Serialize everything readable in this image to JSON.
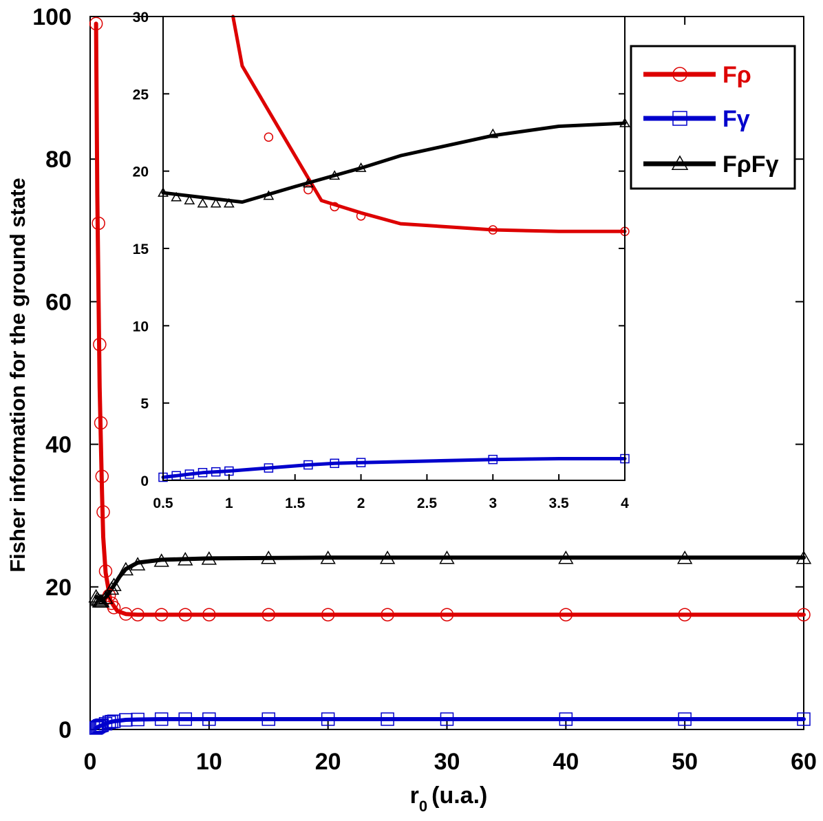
{
  "chart_data": {
    "type": "line",
    "title": "",
    "ylabel": "Fisher information for the ground state",
    "xlabel_main": "r",
    "xlabel_sub": "0",
    "xlabel_unit": "(u.a.)",
    "xlim": [
      0,
      60
    ],
    "ylim": [
      0,
      100
    ],
    "xticks": [
      0,
      10,
      20,
      30,
      40,
      50,
      60
    ],
    "yticks": [
      0,
      20,
      40,
      60,
      80,
      100
    ],
    "legend": {
      "position": "top-right",
      "entries": [
        {
          "label": "Fρ",
          "color": "#dd0000",
          "marker": "circle"
        },
        {
          "label": "Fγ",
          "color": "#0000cc",
          "marker": "square"
        },
        {
          "label": "FρFγ",
          "color": "#000000",
          "marker": "triangle"
        }
      ]
    },
    "series": [
      {
        "name": "Fρ",
        "color": "#dd0000",
        "marker": "circle",
        "line": {
          "x": [
            0.5,
            0.6,
            0.8,
            1.0,
            1.1,
            1.3,
            1.7,
            2.0,
            2.3,
            3,
            4,
            6,
            10,
            20,
            30,
            40,
            50,
            60
          ],
          "y": [
            99,
            75,
            48,
            33,
            27,
            22,
            18.1,
            17.3,
            16.6,
            16.2,
            16.1,
            16.1,
            16.1,
            16.1,
            16.1,
            16.1,
            16.1,
            16.1
          ]
        },
        "points": {
          "x": [
            0.5,
            0.7,
            0.8,
            0.9,
            1.0,
            1.1,
            1.3,
            1.6,
            1.8,
            2.0,
            3,
            4,
            6,
            8,
            10,
            15,
            20,
            25,
            30,
            40,
            50,
            60
          ],
          "y": [
            99,
            71,
            54,
            43,
            35.5,
            30.5,
            22.2,
            18.8,
            17.7,
            17.1,
            16.2,
            16.1,
            16.1,
            16.1,
            16.1,
            16.1,
            16.1,
            16.1,
            16.1,
            16.1,
            16.1,
            16.1
          ]
        }
      },
      {
        "name": "Fγ",
        "color": "#0000cc",
        "marker": "square",
        "line": {
          "x": [
            0.5,
            0.7,
            1.0,
            1.3,
            1.6,
            2,
            3,
            4,
            6,
            10,
            20,
            30,
            40,
            50,
            60
          ],
          "y": [
            0.2,
            0.4,
            0.6,
            0.8,
            1.0,
            1.15,
            1.35,
            1.4,
            1.45,
            1.45,
            1.45,
            1.45,
            1.45,
            1.45,
            1.45
          ]
        },
        "points": {
          "x": [
            0.5,
            0.6,
            0.7,
            0.8,
            0.9,
            1.0,
            1.3,
            1.6,
            1.8,
            2.0,
            3,
            4,
            6,
            8,
            10,
            15,
            20,
            25,
            30,
            40,
            50,
            60
          ],
          "y": [
            0.2,
            0.3,
            0.4,
            0.5,
            0.55,
            0.6,
            0.8,
            1.0,
            1.1,
            1.15,
            1.35,
            1.4,
            1.45,
            1.45,
            1.45,
            1.45,
            1.45,
            1.45,
            1.45,
            1.45,
            1.45,
            1.45
          ]
        }
      },
      {
        "name": "FρFγ",
        "color": "#000000",
        "marker": "triangle",
        "line": {
          "x": [
            0.5,
            0.8,
            1.1,
            1.5,
            2,
            2.5,
            3,
            4,
            6,
            10,
            20,
            30,
            40,
            50,
            60
          ],
          "y": [
            18.6,
            18.3,
            18.0,
            19.0,
            20.2,
            21.5,
            22.5,
            23.4,
            23.8,
            24.0,
            24.1,
            24.1,
            24.1,
            24.1,
            24.1
          ]
        },
        "points": {
          "x": [
            0.5,
            0.6,
            0.7,
            0.8,
            0.9,
            1.0,
            1.3,
            1.8,
            2.0,
            3,
            4,
            6,
            8,
            10,
            15,
            20,
            25,
            30,
            40,
            50,
            60
          ],
          "y": [
            18.6,
            18.3,
            18.1,
            17.9,
            17.9,
            17.9,
            18.4,
            19.7,
            20.2,
            22.4,
            23.1,
            23.6,
            23.8,
            23.9,
            24.0,
            24.0,
            24.0,
            24.0,
            24.0,
            24.0,
            24.0
          ]
        }
      }
    ],
    "inset": {
      "xlim": [
        0.5,
        4
      ],
      "ylim": [
        0,
        30
      ],
      "xticks": [
        "0.5",
        "1",
        "1.5",
        "2",
        "2.5",
        "3",
        "3.5",
        "4"
      ],
      "yticks": [
        "0",
        "5",
        "10",
        "15",
        "20",
        "25",
        "30"
      ],
      "series": [
        {
          "name": "Fρ",
          "color": "#dd0000",
          "marker": "circle",
          "line": {
            "x": [
              1.03,
              1.1,
              1.7,
              2.0,
              2.3,
              3.0,
              3.5,
              4.0
            ],
            "y": [
              30,
              26.8,
              18.1,
              17.3,
              16.6,
              16.2,
              16.1,
              16.1
            ]
          },
          "points": {
            "x": [
              1.3,
              1.6,
              1.8,
              2.0,
              3.0,
              4.0
            ],
            "y": [
              22.2,
              18.8,
              17.7,
              17.1,
              16.2,
              16.1
            ]
          }
        },
        {
          "name": "Fγ",
          "color": "#0000cc",
          "marker": "square",
          "line": {
            "x": [
              0.5,
              0.6,
              0.7,
              0.8,
              0.9,
              1.0,
              1.3,
              1.6,
              1.8,
              2.0,
              3.0,
              3.5,
              4.0
            ],
            "y": [
              0.2,
              0.3,
              0.4,
              0.5,
              0.55,
              0.6,
              0.8,
              1.0,
              1.1,
              1.15,
              1.35,
              1.4,
              1.4
            ]
          },
          "points": {
            "x": [
              0.5,
              0.6,
              0.7,
              0.8,
              0.9,
              1.0,
              1.3,
              1.6,
              1.8,
              2.0,
              3.0,
              4.0
            ],
            "y": [
              0.2,
              0.3,
              0.4,
              0.5,
              0.55,
              0.6,
              0.8,
              1.0,
              1.1,
              1.15,
              1.35,
              1.4
            ]
          }
        },
        {
          "name": "FρFγ",
          "color": "#000000",
          "marker": "triangle",
          "line": {
            "x": [
              0.5,
              0.8,
              1.1,
              1.5,
              2.0,
              2.3,
              3.0,
              3.5,
              4.0
            ],
            "y": [
              18.6,
              18.3,
              18.0,
              19.0,
              20.2,
              21.0,
              22.3,
              22.9,
              23.1
            ]
          },
          "points": {
            "x": [
              0.5,
              0.6,
              0.7,
              0.8,
              0.9,
              1.0,
              1.3,
              1.6,
              1.8,
              2.0,
              3.0,
              4.0
            ],
            "y": [
              18.6,
              18.3,
              18.1,
              17.9,
              17.9,
              17.9,
              18.4,
              19.2,
              19.7,
              20.2,
              22.4,
              23.1
            ]
          }
        }
      ]
    }
  }
}
